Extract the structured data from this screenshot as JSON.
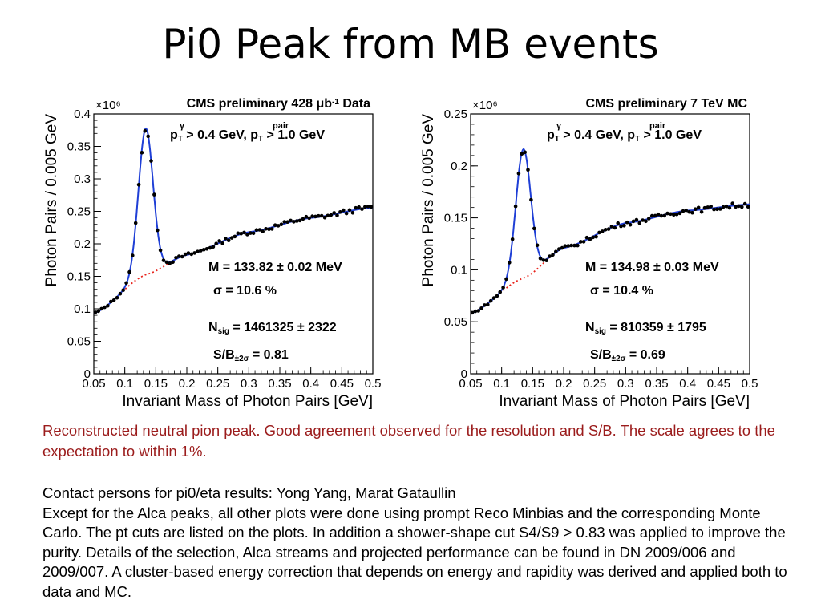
{
  "slide": {
    "title": "Pi0 Peak from MB events",
    "caption_red": "Reconstructed neutral pion peak. Good agreement observed for the resolution and S/B. The scale agrees to the expectation to within 1%.",
    "caption_lines": [
      "Contact persons for pi0/eta results: Yong Yang, Marat Gataullin",
      "Except for the Alca peaks, all other plots were done using prompt Reco Minbias and the corresponding Monte Carlo. The pt cuts are listed on the plots. In addition a shower-shape cut S4/S9 > 0.83 was applied to improve the purity. Details of the selection, Alca streams  and projected performance can be found in DN 2009/006 and 2009/007. A cluster-based energy correction that depends on energy and rapidity was derived and applied both to data and MC."
    ]
  },
  "chart_data": [
    {
      "type": "scatter",
      "title": "CMS preliminary 428 μb⁻¹ Data",
      "xlabel": "Invariant Mass of Photon Pairs [GeV]",
      "ylabel": "Photon Pairs / 0.005 GeV",
      "y_multiplier": "×10⁶",
      "xlim": [
        0.05,
        0.5
      ],
      "ylim": [
        0,
        0.4
      ],
      "xticks": [
        "0.05",
        "0.1",
        "0.15",
        "0.2",
        "0.25",
        "0.3",
        "0.35",
        "0.4",
        "0.45",
        "0.5"
      ],
      "yticks": [
        "0",
        "0.05",
        "0.1",
        "0.15",
        "0.2",
        "0.25",
        "0.3",
        "0.35",
        "0.4"
      ],
      "cuts_line": "p_T^γ > 0.4 GeV, p_T^pair > 1.0 GeV",
      "fit": {
        "M": "M = 133.82 ± 0.02 MeV",
        "sigma": "σ = 10.6 %",
        "nsig": "N_sig = 1461325 ± 2322",
        "sb": "S/B_±2σ = 0.81"
      },
      "peak": {
        "mean": 0.1338,
        "width": 0.0118,
        "amplitude": 0.225
      },
      "background": {
        "at_0.05": 0.093,
        "at_0.135": 0.153,
        "at_0.2": 0.183,
        "at_0.3": 0.218,
        "at_0.4": 0.24,
        "at_0.5": 0.256
      },
      "series": [
        {
          "name": "data",
          "color": "#000000"
        },
        {
          "name": "signal+background fit",
          "color": "#1f3fd6"
        },
        {
          "name": "background fit",
          "color": "#e8241c"
        }
      ]
    },
    {
      "type": "scatter",
      "title": "CMS preliminary 7 TeV MC",
      "xlabel": "Invariant Mass of Photon Pairs [GeV]",
      "ylabel": "Photon Pairs / 0.005 GeV",
      "y_multiplier": "×10⁶",
      "xlim": [
        0.05,
        0.5
      ],
      "ylim": [
        0,
        0.25
      ],
      "xticks": [
        "0.05",
        "0.1",
        "0.15",
        "0.2",
        "0.25",
        "0.3",
        "0.35",
        "0.4",
        "0.45",
        "0.5"
      ],
      "yticks": [
        "0",
        "0.05",
        "0.1",
        "0.15",
        "0.2",
        "0.25"
      ],
      "cuts_line": "p_T^γ > 0.4 GeV, p_T^pair > 1.0 GeV",
      "fit": {
        "M": "M = 134.98 ± 0.03 MeV",
        "sigma": "σ = 10.4 %",
        "nsig": "N_sig = 810359 ± 1795",
        "sb": "S/B_±2σ = 0.69"
      },
      "peak": {
        "mean": 0.135,
        "width": 0.012,
        "amplitude": 0.124
      },
      "background": {
        "at_0.05": 0.058,
        "at_0.135": 0.092,
        "at_0.2": 0.121,
        "at_0.3": 0.145,
        "at_0.4": 0.157,
        "at_0.5": 0.163
      },
      "series": [
        {
          "name": "data",
          "color": "#000000"
        },
        {
          "name": "signal+background fit",
          "color": "#1f3fd6"
        },
        {
          "name": "background fit",
          "color": "#e8241c"
        }
      ]
    }
  ]
}
